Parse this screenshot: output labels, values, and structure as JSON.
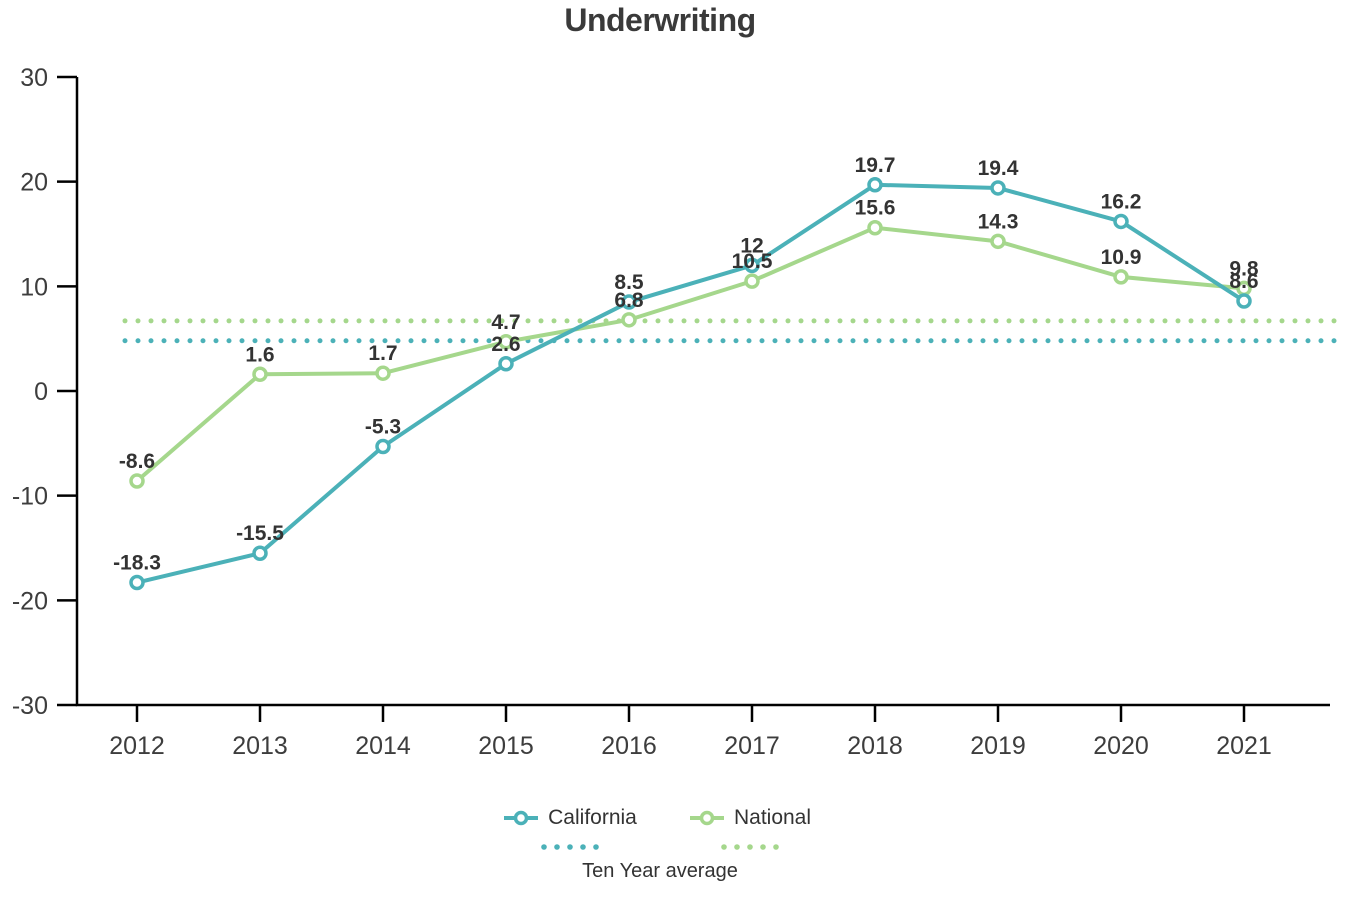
{
  "title": "Underwriting",
  "chart_data": {
    "type": "line",
    "title": "Underwriting",
    "categories": [
      "2012",
      "2013",
      "2014",
      "2015",
      "2016",
      "2017",
      "2018",
      "2019",
      "2020",
      "2021"
    ],
    "series": [
      {
        "name": "California",
        "color": "#4bb1b8",
        "values": [
          -18.3,
          -15.5,
          -5.3,
          2.6,
          8.5,
          12,
          19.7,
          19.4,
          16.2,
          8.6
        ],
        "ten_year_average": 4.8
      },
      {
        "name": "National",
        "color": "#a5d78c",
        "values": [
          -8.6,
          1.6,
          1.7,
          4.7,
          6.8,
          10.5,
          15.6,
          14.3,
          10.9,
          9.8
        ],
        "ten_year_average": 6.7
      }
    ],
    "average_label": "Ten Year average",
    "ylim": [
      -30,
      30
    ],
    "ytick_step": 10,
    "xlabel": "",
    "ylabel": "",
    "grid": false,
    "legend_position": "bottom",
    "marker_style": "open-circle",
    "average_line_style": "dotted",
    "label_color": "#333333",
    "tick_label_color": "#3d3d3d",
    "axis_color": "#000000"
  }
}
